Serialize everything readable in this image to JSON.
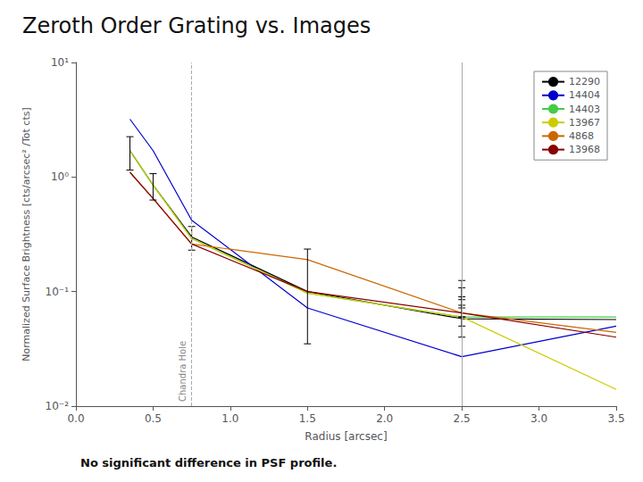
{
  "chart_data": {
    "type": "line",
    "title": "Zeroth Order Grating vs. Images",
    "subtitle": "No significant difference in PSF profile.",
    "xlabel": "Radius [arcsec]",
    "ylabel": "Normalized Surface Brightness [cts/arcsec² /Tot cts]",
    "x": [
      0.35,
      0.5,
      0.75,
      1.5,
      2.5,
      3.5
    ],
    "series": [
      {
        "name": "12290",
        "color": "#000000",
        "line_style": "solid",
        "values": [
          1.7,
          0.85,
          0.3,
          0.1,
          0.058,
          0.057
        ]
      },
      {
        "name": "14404",
        "color": "#0000cc",
        "line_style": "solid",
        "values": [
          3.2,
          1.7,
          0.42,
          0.072,
          0.027,
          0.05
        ]
      },
      {
        "name": "14403",
        "color": "#44cc44",
        "line_style": "solid",
        "values": [
          1.7,
          0.85,
          0.29,
          0.097,
          0.06,
          0.06
        ]
      },
      {
        "name": "13967",
        "color": "#cccc00",
        "line_style": "solid",
        "values": [
          1.7,
          0.85,
          0.29,
          0.097,
          0.06,
          0.014
        ]
      },
      {
        "name": "4868",
        "color": "#cc6600",
        "line_style": "solid",
        "values": [
          1.1,
          0.65,
          0.26,
          0.19,
          0.065,
          0.044
        ]
      },
      {
        "name": "13968",
        "color": "#880000",
        "line_style": "solid",
        "values": [
          1.1,
          0.65,
          0.26,
          0.1,
          0.065,
          0.04
        ]
      }
    ],
    "error_bars": [
      {
        "x": 0.35,
        "y": 1.7,
        "yerr_lo": 0.55,
        "yerr_hi": 0.55,
        "color": "#000000"
      },
      {
        "x": 0.5,
        "y": 0.85,
        "yerr_lo": 0.22,
        "yerr_hi": 0.22,
        "color": "#000000"
      },
      {
        "x": 0.75,
        "y": 0.3,
        "yerr_lo": 0.07,
        "yerr_hi": 0.07,
        "color": "#000000"
      },
      {
        "x": 1.5,
        "y": 0.1,
        "yerr_lo": 0.065,
        "yerr_hi": 0.135,
        "color": "#000000"
      },
      {
        "x": 2.5,
        "y": 0.105,
        "yerr_lo": 0.02,
        "yerr_hi": 0.02,
        "color": "#000000"
      },
      {
        "x": 2.5,
        "y": 0.09,
        "yerr_lo": 0.018,
        "yerr_hi": 0.018,
        "color": "#000000"
      },
      {
        "x": 2.5,
        "y": 0.075,
        "yerr_lo": 0.015,
        "yerr_hi": 0.015,
        "color": "#000000"
      },
      {
        "x": 2.5,
        "y": 0.063,
        "yerr_lo": 0.013,
        "yerr_hi": 0.013,
        "color": "#000000"
      },
      {
        "x": 2.5,
        "y": 0.05,
        "yerr_lo": 0.01,
        "yerr_hi": 0.01,
        "color": "#000000"
      }
    ],
    "vlines": [
      {
        "x": 0.75,
        "line_style": "dashed",
        "label": "Chandra Hole"
      },
      {
        "x": 2.5,
        "line_style": "solid"
      }
    ],
    "xlim": [
      0.0,
      3.5
    ],
    "xticks": [
      {
        "value": 0.0,
        "label": "0.0"
      },
      0.5,
      {
        "value": 1.0,
        "label": "1.0"
      },
      1.5,
      {
        "value": 2.0,
        "label": "2.0"
      },
      2.5,
      {
        "value": 3.0,
        "label": "3.0"
      },
      3.5
    ],
    "ylim": [
      0.01,
      10.0
    ],
    "yticks": [
      {
        "value": 0.01,
        "label": "10⁻²"
      },
      {
        "value": 0.1,
        "label": "10⁻¹"
      },
      {
        "value": 1,
        "label": "10⁰"
      },
      {
        "value": 10,
        "label": "10¹"
      }
    ],
    "log": "y",
    "grid": false,
    "legend": "upper right"
  }
}
